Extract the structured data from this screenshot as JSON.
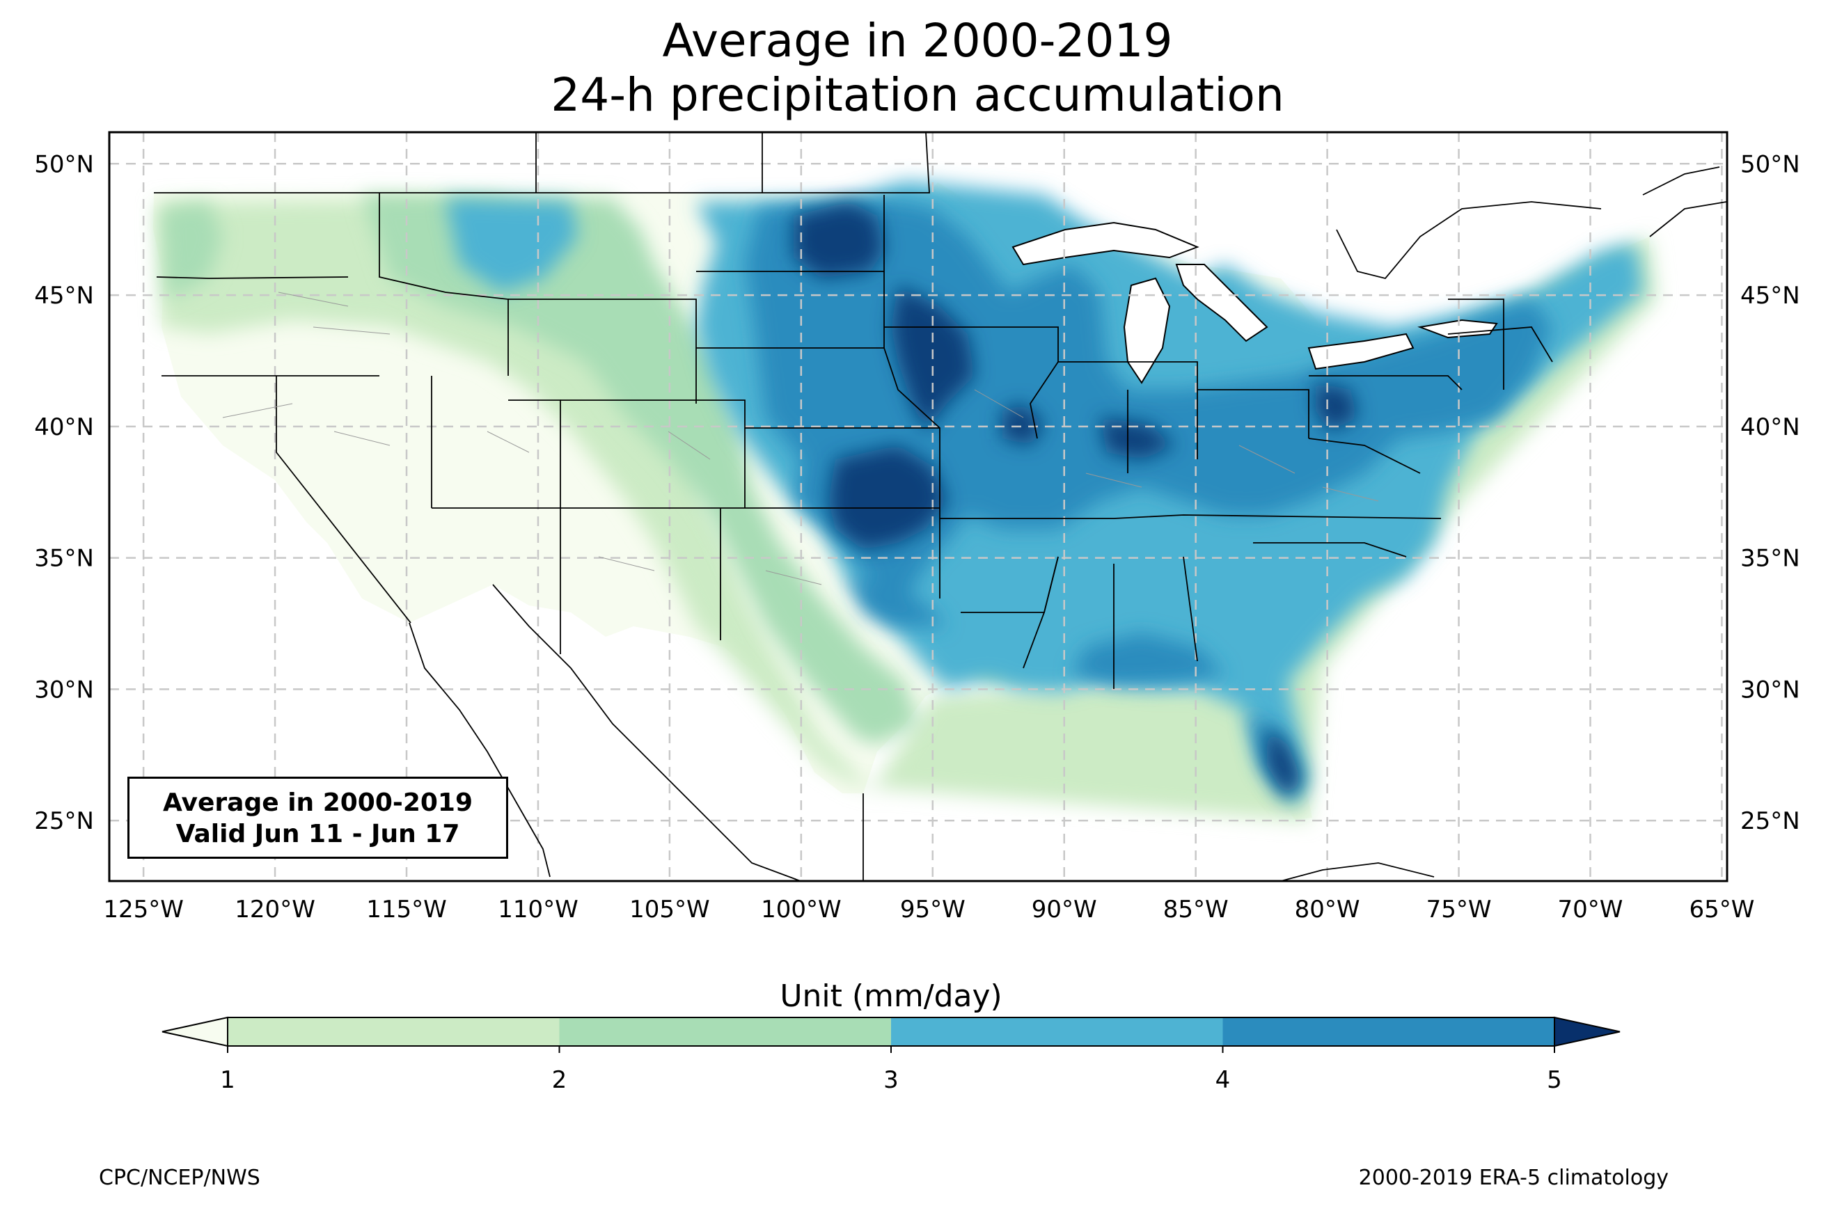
{
  "title": {
    "line1": "Average in 2000-2019",
    "line2": "24-h precipitation accumulation"
  },
  "map": {
    "extent": {
      "lon_min": -126.3,
      "lon_max": -64.8,
      "lat_min": 22.7,
      "lat_max": 51.2
    },
    "lon_ticks": [
      {
        "lon": -125,
        "label": "125°W"
      },
      {
        "lon": -120,
        "label": "120°W"
      },
      {
        "lon": -115,
        "label": "115°W"
      },
      {
        "lon": -110,
        "label": "110°W"
      },
      {
        "lon": -105,
        "label": "105°W"
      },
      {
        "lon": -100,
        "label": "100°W"
      },
      {
        "lon": -95,
        "label": "95°W"
      },
      {
        "lon": -90,
        "label": "90°W"
      },
      {
        "lon": -85,
        "label": "85°W"
      },
      {
        "lon": -80,
        "label": "80°W"
      },
      {
        "lon": -75,
        "label": "75°W"
      },
      {
        "lon": -70,
        "label": "70°W"
      },
      {
        "lon": -65,
        "label": "65°W"
      }
    ],
    "lat_ticks": [
      {
        "lat": 50,
        "label": "50°N"
      },
      {
        "lat": 45,
        "label": "45°N"
      },
      {
        "lat": 40,
        "label": "40°N"
      },
      {
        "lat": 35,
        "label": "35°N"
      },
      {
        "lat": 30,
        "label": "30°N"
      },
      {
        "lat": 25,
        "label": "25°N"
      }
    ],
    "gridlines": true,
    "field_colors": [
      "#f7fcf0",
      "#ccebc5",
      "#a8ddb5",
      "#7bccc4",
      "#4eb3d3",
      "#2b8cbe",
      "#08589e",
      "#0b3f7a"
    ]
  },
  "info_box": {
    "line1": "Average in 2000-2019",
    "line2": "Valid Jun 11 - Jun 17"
  },
  "colorbar": {
    "title": "Unit (mm/day)",
    "levels": [
      1,
      2,
      3,
      4,
      5
    ],
    "tick_labels": [
      "1",
      "2",
      "3",
      "4",
      "5"
    ],
    "colors": {
      "under": "#f7fcf0",
      "bins": [
        "#ccebc5",
        "#a8ddb5",
        "#4eb3d3",
        "#2b8cbe"
      ],
      "over": "#08306b"
    },
    "extend": "both"
  },
  "footer": {
    "left": "CPC/NCEP/NWS",
    "right": "2000-2019 ERA-5 climatology"
  }
}
